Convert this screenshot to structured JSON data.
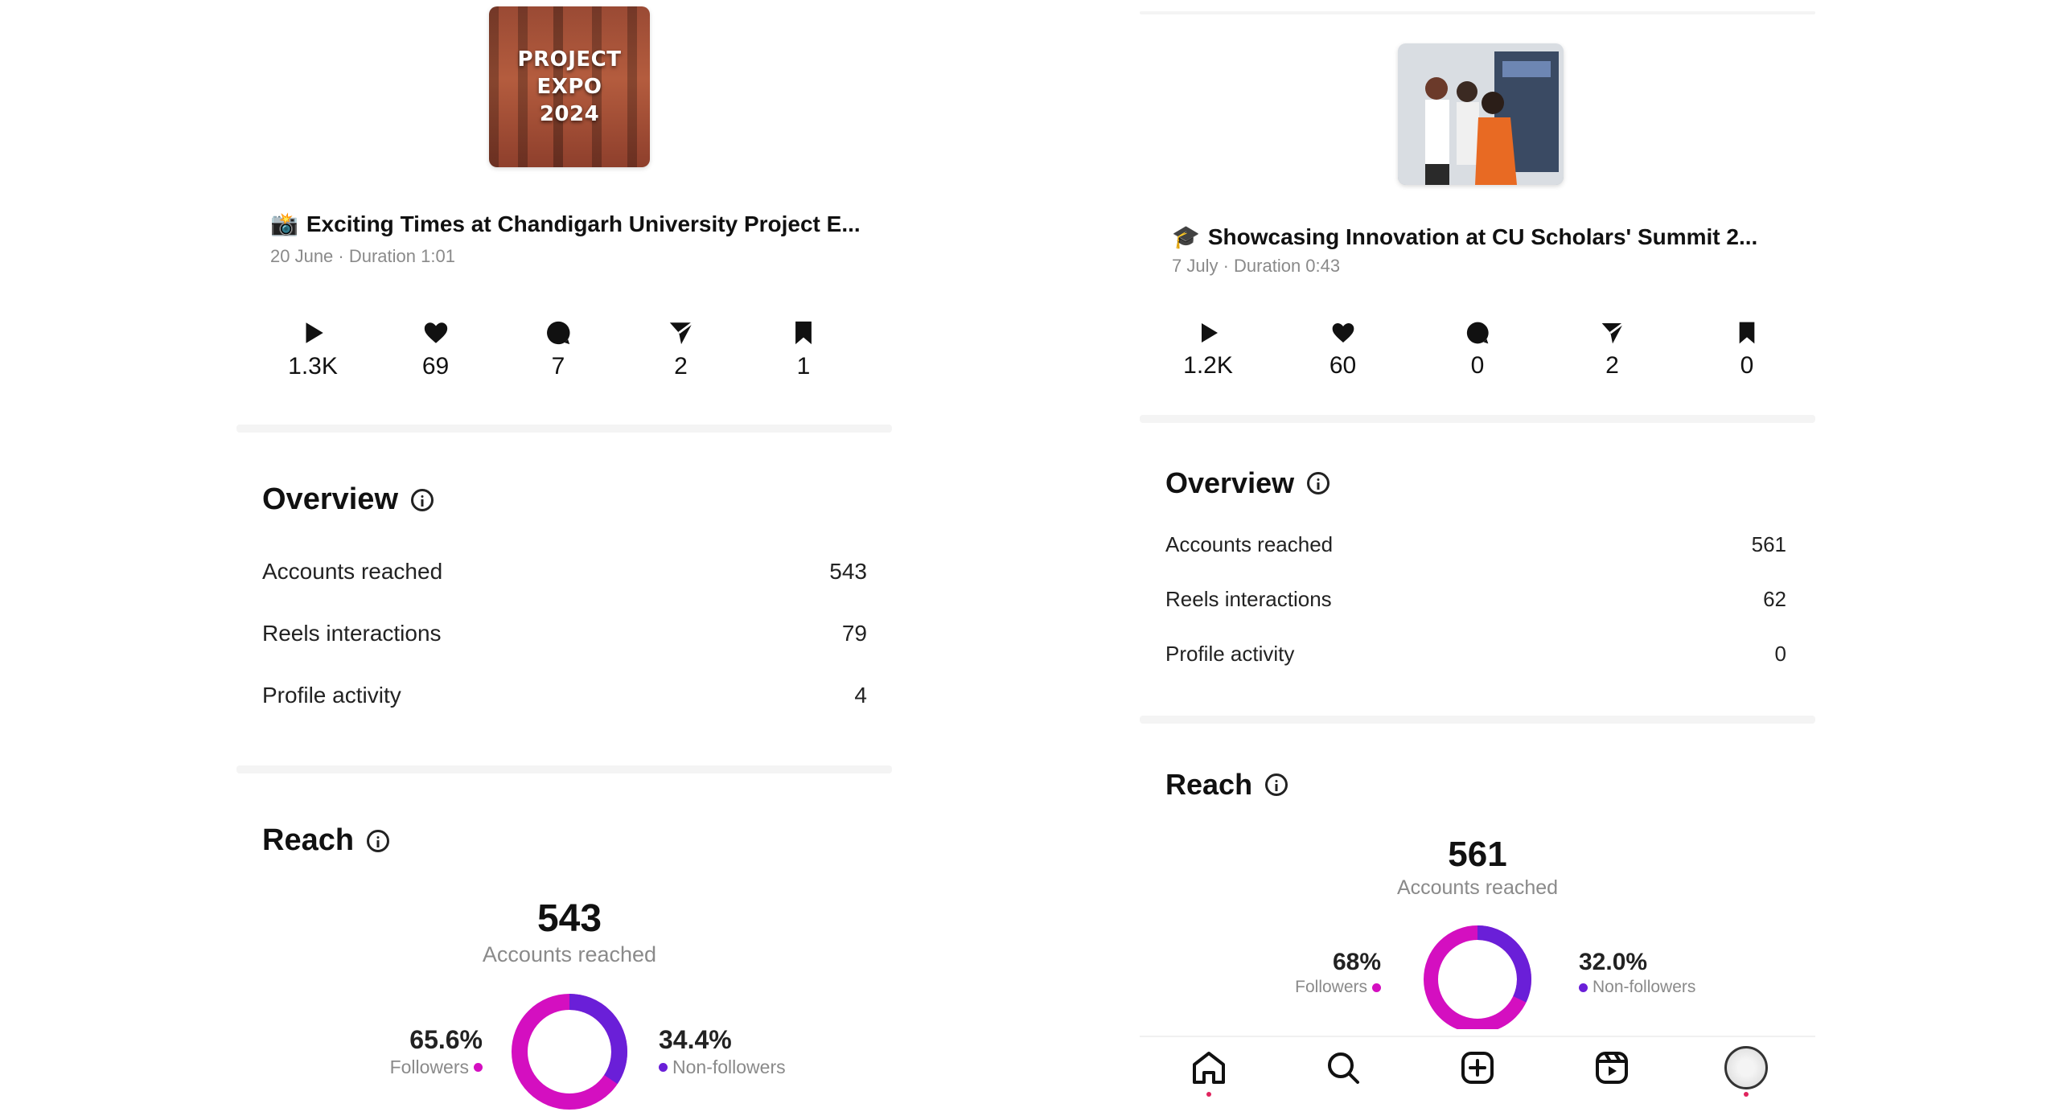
{
  "colors": {
    "followers": "#d40fc0",
    "non_followers": "#6a1fd8",
    "notification_dot": "#e0245e"
  },
  "left": {
    "thumbnail_text": [
      "PROJECT EXPO",
      "2024"
    ],
    "post": {
      "emoji": "📸",
      "title": "Exciting Times at Chandigarh University Project E...",
      "meta": "20 June · Duration 1:01"
    },
    "stats": {
      "plays": "1.3K",
      "likes": "69",
      "comments": "7",
      "shares": "2",
      "saves": "1"
    },
    "overview": {
      "title": "Overview",
      "rows": [
        {
          "label": "Accounts reached",
          "value": "543"
        },
        {
          "label": "Reels interactions",
          "value": "79"
        },
        {
          "label": "Profile activity",
          "value": "4"
        }
      ]
    },
    "reach": {
      "title": "Reach",
      "total": "543",
      "total_label": "Accounts reached",
      "followers_pct": "65.6%",
      "followers_label": "Followers",
      "non_followers_pct": "34.4%",
      "non_followers_label": "Non-followers",
      "followers_fraction": 0.656
    }
  },
  "right": {
    "post": {
      "emoji": "🎓",
      "title": "Showcasing Innovation at CU Scholars' Summit 2...",
      "meta": "7 July · Duration 0:43"
    },
    "stats": {
      "plays": "1.2K",
      "likes": "60",
      "comments": "0",
      "shares": "2",
      "saves": "0"
    },
    "overview": {
      "title": "Overview",
      "rows": [
        {
          "label": "Accounts reached",
          "value": "561"
        },
        {
          "label": "Reels interactions",
          "value": "62"
        },
        {
          "label": "Profile activity",
          "value": "0"
        }
      ]
    },
    "reach": {
      "title": "Reach",
      "total": "561",
      "total_label": "Accounts reached",
      "followers_pct": "68%",
      "followers_label": "Followers",
      "non_followers_pct": "32.0%",
      "non_followers_label": "Non-followers",
      "followers_fraction": 0.68
    },
    "nav": [
      "home-icon",
      "search-icon",
      "create-icon",
      "reels-icon",
      "profile-avatar"
    ]
  }
}
